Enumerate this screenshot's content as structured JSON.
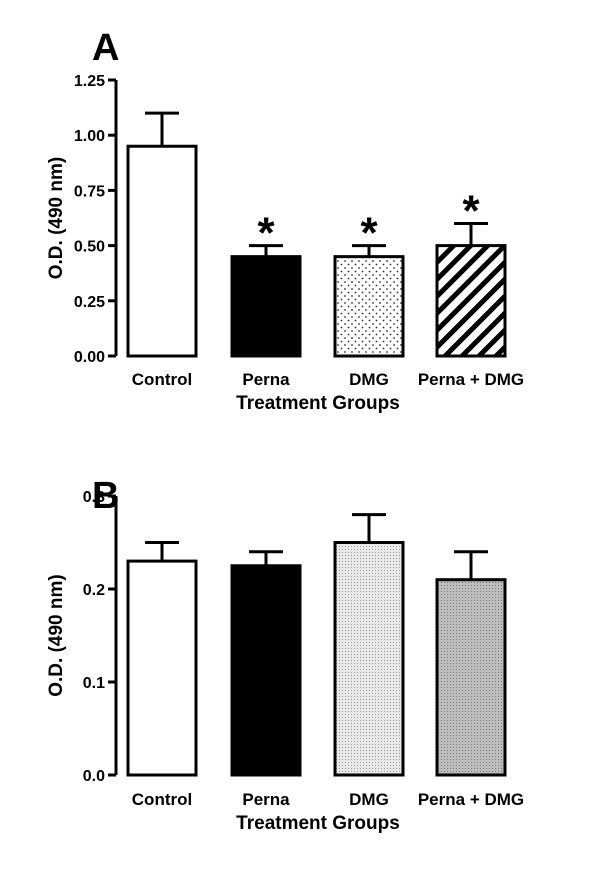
{
  "chart_data": [
    {
      "panel": "A",
      "type": "bar",
      "categories": [
        "Control",
        "Perna",
        "DMG",
        "Perna + DMG"
      ],
      "values": [
        0.95,
        0.45,
        0.45,
        0.5
      ],
      "error": [
        0.15,
        0.05,
        0.05,
        0.1
      ],
      "significance": [
        "",
        "*",
        "*",
        "*"
      ],
      "fills": [
        "white",
        "black",
        "dots",
        "hatch"
      ],
      "xlabel": "Treatment Groups",
      "ylabel": "O.D. (490 nm)",
      "ylim": [
        0,
        1.25
      ],
      "yticks": [
        "0.00",
        "0.25",
        "0.50",
        "0.75",
        "1.00",
        "1.25"
      ],
      "ytick_values": [
        0,
        0.25,
        0.5,
        0.75,
        1.0,
        1.25
      ],
      "grid": false
    },
    {
      "panel": "B",
      "type": "bar",
      "categories": [
        "Control",
        "Perna",
        "DMG",
        "Perna + DMG"
      ],
      "values": [
        0.23,
        0.225,
        0.25,
        0.21
      ],
      "error": [
        0.02,
        0.015,
        0.03,
        0.03
      ],
      "significance": [
        "",
        "",
        "",
        ""
      ],
      "fills": [
        "white",
        "black",
        "lightdots",
        "darkdots"
      ],
      "xlabel": "Treatment Groups",
      "ylabel": "O.D. (490 nm)",
      "ylim": [
        0,
        0.3
      ],
      "yticks": [
        "0.0",
        "0.1",
        "0.2",
        "0.3"
      ],
      "ytick_values": [
        0,
        0.1,
        0.2,
        0.3
      ],
      "grid": false
    }
  ]
}
